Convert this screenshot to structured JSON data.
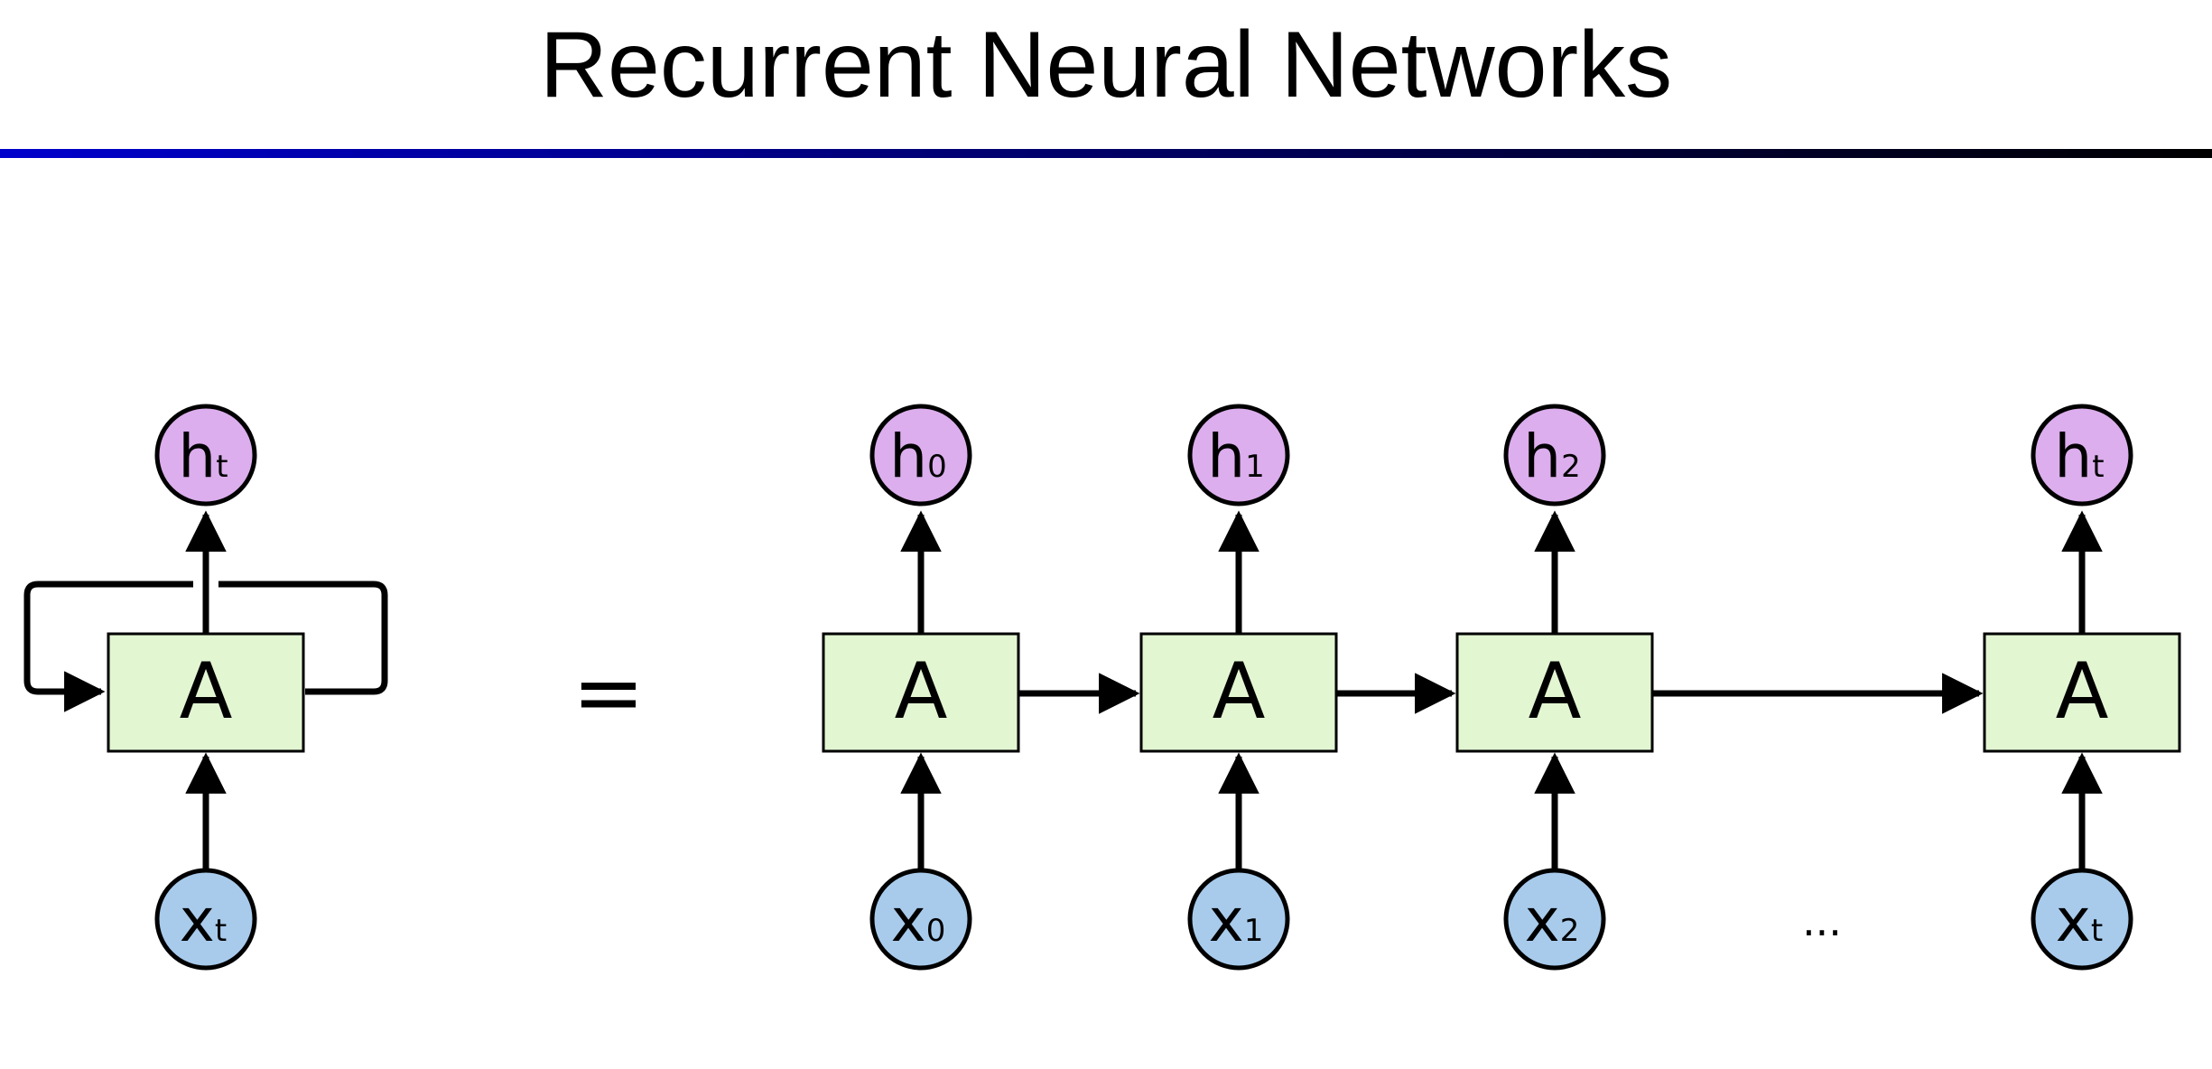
{
  "slide": {
    "title": "Recurrent Neural Networks",
    "rule_colors": [
      "#0000cc",
      "#000000"
    ]
  },
  "diagram": {
    "colors": {
      "cell_fill": "#e2f6d2",
      "output_fill": "#dcaeed",
      "input_fill": "#a8cbec",
      "stroke": "#000000"
    },
    "rolled": {
      "cell_label": "A",
      "output": {
        "main": "h",
        "sub": "t"
      },
      "input": {
        "main": "x",
        "sub": "t"
      }
    },
    "equals": "=",
    "ellipsis": "...",
    "unrolled": [
      {
        "cell_label": "A",
        "output": {
          "main": "h",
          "sub": "0"
        },
        "input": {
          "main": "x",
          "sub": "0"
        }
      },
      {
        "cell_label": "A",
        "output": {
          "main": "h",
          "sub": "1"
        },
        "input": {
          "main": "x",
          "sub": "1"
        }
      },
      {
        "cell_label": "A",
        "output": {
          "main": "h",
          "sub": "2"
        },
        "input": {
          "main": "x",
          "sub": "2"
        }
      },
      {
        "cell_label": "A",
        "output": {
          "main": "h",
          "sub": "t"
        },
        "input": {
          "main": "x",
          "sub": "t"
        }
      }
    ]
  }
}
